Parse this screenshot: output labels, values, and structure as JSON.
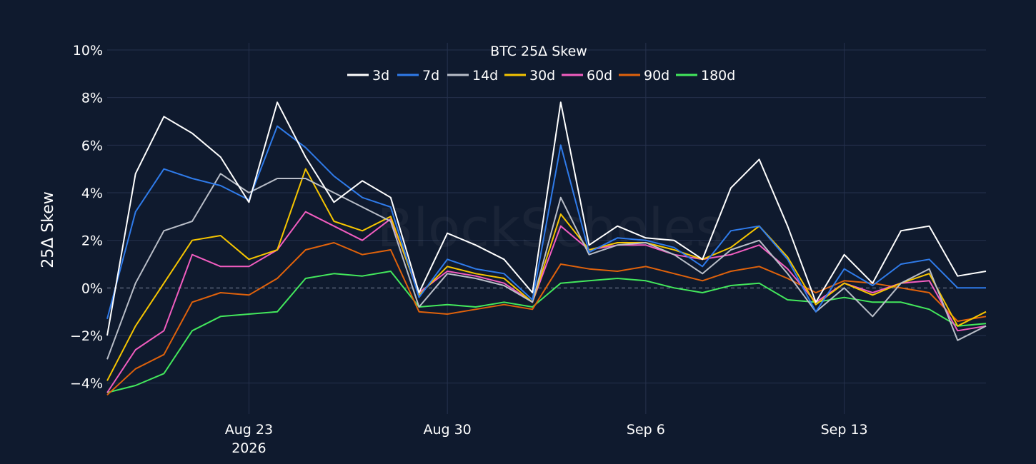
{
  "chart_data": {
    "type": "line",
    "title": "BTC 25Δ Skew",
    "ylabel": "25Δ Skew",
    "xlabel": "",
    "watermark": "BlockScholes",
    "x_range": [
      "2026-08-18",
      "2026-09-18"
    ],
    "ylim": [
      -5.3,
      10.3
    ],
    "y_ticks": [
      -4,
      -2,
      0,
      2,
      4,
      6,
      8,
      10
    ],
    "y_tick_labels": [
      "−4%",
      "−2%",
      "0%",
      "2%",
      "4%",
      "6%",
      "8%",
      "10%"
    ],
    "x_ticks": [
      {
        "date": "2026-08-23",
        "label": "Aug 23",
        "sublabel": "2026"
      },
      {
        "date": "2026-08-30",
        "label": "Aug 30",
        "sublabel": ""
      },
      {
        "date": "2026-09-06",
        "label": "Sep 6",
        "sublabel": ""
      },
      {
        "date": "2026-09-13",
        "label": "Sep 13",
        "sublabel": ""
      }
    ],
    "grid": true,
    "zero_line": "dashed",
    "legend_position": "top-center",
    "background": "#0f1a2e",
    "grid_color": "#26324d",
    "series": [
      {
        "name": "3d",
        "color": "#ffffff",
        "dates": [
          "2026-08-18",
          "2026-08-19",
          "2026-08-20",
          "2026-08-21",
          "2026-08-22",
          "2026-08-23",
          "2026-08-24",
          "2026-08-25",
          "2026-08-26",
          "2026-08-27",
          "2026-08-28",
          "2026-08-29",
          "2026-08-30",
          "2026-08-31",
          "2026-09-01",
          "2026-09-02",
          "2026-09-03",
          "2026-09-04",
          "2026-09-05",
          "2026-09-06",
          "2026-09-07",
          "2026-09-08",
          "2026-09-09",
          "2026-09-10",
          "2026-09-11",
          "2026-09-12",
          "2026-09-13",
          "2026-09-14",
          "2026-09-15",
          "2026-09-16",
          "2026-09-17",
          "2026-09-18"
        ],
        "values": [
          -2.0,
          4.8,
          7.2,
          6.5,
          5.5,
          3.6,
          7.8,
          5.5,
          3.6,
          4.5,
          3.8,
          -0.2,
          2.3,
          1.8,
          1.2,
          -0.2,
          7.8,
          1.8,
          2.6,
          2.1,
          2.0,
          1.2,
          4.2,
          5.4,
          2.6,
          -0.6,
          1.4,
          0.2,
          2.4,
          2.6,
          0.5,
          0.7
        ]
      },
      {
        "name": "7d",
        "color": "#2f7bea",
        "dates": [
          "2026-08-18",
          "2026-08-19",
          "2026-08-20",
          "2026-08-21",
          "2026-08-22",
          "2026-08-23",
          "2026-08-24",
          "2026-08-25",
          "2026-08-26",
          "2026-08-27",
          "2026-08-28",
          "2026-08-29",
          "2026-08-30",
          "2026-08-31",
          "2026-09-01",
          "2026-09-02",
          "2026-09-03",
          "2026-09-04",
          "2026-09-05",
          "2026-09-06",
          "2026-09-07",
          "2026-09-08",
          "2026-09-09",
          "2026-09-10",
          "2026-09-11",
          "2026-09-12",
          "2026-09-13",
          "2026-09-14",
          "2026-09-15",
          "2026-09-16",
          "2026-09-17",
          "2026-09-18"
        ],
        "values": [
          -1.3,
          3.2,
          5.0,
          4.6,
          4.3,
          3.7,
          6.8,
          5.9,
          4.7,
          3.8,
          3.4,
          -0.4,
          1.2,
          0.8,
          0.6,
          -0.5,
          6.0,
          1.5,
          2.1,
          2.0,
          1.7,
          0.9,
          2.4,
          2.6,
          1.2,
          -1.0,
          0.8,
          0.1,
          1.0,
          1.2,
          0.0,
          0.0
        ]
      },
      {
        "name": "14d",
        "color": "#b9bec8",
        "dates": [
          "2026-08-18",
          "2026-08-19",
          "2026-08-20",
          "2026-08-21",
          "2026-08-22",
          "2026-08-23",
          "2026-08-24",
          "2026-08-25",
          "2026-08-26",
          "2026-08-27",
          "2026-08-28",
          "2026-08-29",
          "2026-08-30",
          "2026-08-31",
          "2026-09-01",
          "2026-09-02",
          "2026-09-03",
          "2026-09-04",
          "2026-09-05",
          "2026-09-06",
          "2026-09-07",
          "2026-09-08",
          "2026-09-09",
          "2026-09-10",
          "2026-09-11",
          "2026-09-12",
          "2026-09-13",
          "2026-09-14",
          "2026-09-15",
          "2026-09-16",
          "2026-09-17",
          "2026-09-18"
        ],
        "values": [
          -3.0,
          0.2,
          2.4,
          2.8,
          4.8,
          4.0,
          4.6,
          4.6,
          4.0,
          3.4,
          2.8,
          -0.8,
          0.6,
          0.4,
          0.1,
          -0.6,
          3.8,
          1.4,
          1.8,
          1.9,
          1.4,
          0.6,
          1.6,
          2.0,
          0.6,
          -1.0,
          0.0,
          -1.2,
          0.2,
          0.8,
          -2.2,
          -1.6
        ]
      },
      {
        "name": "30d",
        "color": "#f6c500",
        "dates": [
          "2026-08-18",
          "2026-08-19",
          "2026-08-20",
          "2026-08-21",
          "2026-08-22",
          "2026-08-23",
          "2026-08-24",
          "2026-08-25",
          "2026-08-26",
          "2026-08-27",
          "2026-08-28",
          "2026-08-29",
          "2026-08-30",
          "2026-08-31",
          "2026-09-01",
          "2026-09-02",
          "2026-09-03",
          "2026-09-04",
          "2026-09-05",
          "2026-09-06",
          "2026-09-07",
          "2026-09-08",
          "2026-09-09",
          "2026-09-10",
          "2026-09-11",
          "2026-09-12",
          "2026-09-13",
          "2026-09-14",
          "2026-09-15",
          "2026-09-16",
          "2026-09-17",
          "2026-09-18"
        ],
        "values": [
          -3.9,
          -1.6,
          0.2,
          2.0,
          2.2,
          1.2,
          1.6,
          5.0,
          2.8,
          2.4,
          3.0,
          -0.3,
          0.9,
          0.6,
          0.4,
          -0.6,
          3.1,
          1.6,
          1.9,
          1.9,
          1.6,
          1.2,
          1.7,
          2.6,
          1.3,
          -0.7,
          0.2,
          -0.3,
          0.2,
          0.6,
          -1.6,
          -1.0
        ]
      },
      {
        "name": "60d",
        "color": "#f25dc0",
        "dates": [
          "2026-08-18",
          "2026-08-19",
          "2026-08-20",
          "2026-08-21",
          "2026-08-22",
          "2026-08-23",
          "2026-08-24",
          "2026-08-25",
          "2026-08-26",
          "2026-08-27",
          "2026-08-28",
          "2026-08-29",
          "2026-08-30",
          "2026-08-31",
          "2026-09-01",
          "2026-09-02",
          "2026-09-03",
          "2026-09-04",
          "2026-09-05",
          "2026-09-06",
          "2026-09-07",
          "2026-09-08",
          "2026-09-09",
          "2026-09-10",
          "2026-09-11",
          "2026-09-12",
          "2026-09-13",
          "2026-09-14",
          "2026-09-15",
          "2026-09-16",
          "2026-09-17",
          "2026-09-18"
        ],
        "values": [
          -4.4,
          -2.6,
          -1.8,
          1.4,
          0.9,
          0.9,
          1.6,
          3.2,
          2.6,
          2.0,
          2.9,
          -0.2,
          0.7,
          0.5,
          0.2,
          -0.6,
          2.6,
          1.6,
          1.8,
          1.8,
          1.4,
          1.2,
          1.4,
          1.8,
          0.8,
          -0.6,
          0.2,
          -0.2,
          0.2,
          0.3,
          -1.8,
          -1.6
        ]
      },
      {
        "name": "90d",
        "color": "#e0620b",
        "dates": [
          "2026-08-18",
          "2026-08-19",
          "2026-08-20",
          "2026-08-21",
          "2026-08-22",
          "2026-08-23",
          "2026-08-24",
          "2026-08-25",
          "2026-08-26",
          "2026-08-27",
          "2026-08-28",
          "2026-08-29",
          "2026-08-30",
          "2026-08-31",
          "2026-09-01",
          "2026-09-02",
          "2026-09-03",
          "2026-09-04",
          "2026-09-05",
          "2026-09-06",
          "2026-09-07",
          "2026-09-08",
          "2026-09-09",
          "2026-09-10",
          "2026-09-11",
          "2026-09-12",
          "2026-09-13",
          "2026-09-14",
          "2026-09-15",
          "2026-09-16",
          "2026-09-17",
          "2026-09-18"
        ],
        "values": [
          -4.5,
          -3.4,
          -2.8,
          -0.6,
          -0.2,
          -0.3,
          0.4,
          1.6,
          1.9,
          1.4,
          1.6,
          -1.0,
          -1.1,
          -0.9,
          -0.7,
          -0.9,
          1.0,
          0.8,
          0.7,
          0.9,
          0.6,
          0.3,
          0.7,
          0.9,
          0.4,
          -0.2,
          0.3,
          0.2,
          0.0,
          -0.2,
          -1.4,
          -1.2
        ]
      },
      {
        "name": "180d",
        "color": "#43e85c",
        "dates": [
          "2026-08-18",
          "2026-08-19",
          "2026-08-20",
          "2026-08-21",
          "2026-08-22",
          "2026-08-23",
          "2026-08-24",
          "2026-08-25",
          "2026-08-26",
          "2026-08-27",
          "2026-08-28",
          "2026-08-29",
          "2026-08-30",
          "2026-08-31",
          "2026-09-01",
          "2026-09-02",
          "2026-09-03",
          "2026-09-04",
          "2026-09-05",
          "2026-09-06",
          "2026-09-07",
          "2026-09-08",
          "2026-09-09",
          "2026-09-10",
          "2026-09-11",
          "2026-09-12",
          "2026-09-13",
          "2026-09-14",
          "2026-09-15",
          "2026-09-16",
          "2026-09-17",
          "2026-09-18"
        ],
        "values": [
          -4.4,
          -4.1,
          -3.6,
          -1.8,
          -1.2,
          -1.1,
          -1.0,
          0.4,
          0.6,
          0.5,
          0.7,
          -0.8,
          -0.7,
          -0.8,
          -0.6,
          -0.8,
          0.2,
          0.3,
          0.4,
          0.3,
          0.0,
          -0.2,
          0.1,
          0.2,
          -0.5,
          -0.6,
          -0.4,
          -0.6,
          -0.6,
          -0.9,
          -1.6,
          -1.5
        ]
      }
    ]
  }
}
